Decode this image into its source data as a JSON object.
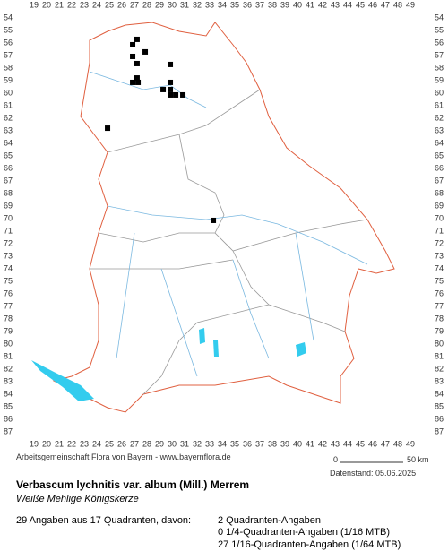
{
  "map": {
    "x_labels": [
      19,
      20,
      21,
      22,
      23,
      24,
      25,
      26,
      27,
      28,
      29,
      30,
      31,
      32,
      33,
      34,
      35,
      36,
      37,
      38,
      39,
      40,
      41,
      42,
      43,
      44,
      45,
      46,
      47,
      48,
      49
    ],
    "y_labels": [
      54,
      55,
      56,
      57,
      58,
      59,
      60,
      61,
      62,
      63,
      64,
      65,
      66,
      67,
      68,
      69,
      70,
      71,
      72,
      73,
      74,
      75,
      76,
      77,
      78,
      79,
      80,
      81,
      82,
      83,
      84,
      85,
      86,
      87
    ],
    "occurrences": [
      {
        "x": 27.21,
        "y": 55.71
      },
      {
        "x": 26.86,
        "y": 56.14
      },
      {
        "x": 27.86,
        "y": 56.71
      },
      {
        "x": 26.86,
        "y": 57.07
      },
      {
        "x": 27.21,
        "y": 57.64
      },
      {
        "x": 29.86,
        "y": 57.71
      },
      {
        "x": 27.21,
        "y": 58.79
      },
      {
        "x": 26.86,
        "y": 59.14
      },
      {
        "x": 27.29,
        "y": 59.14
      },
      {
        "x": 29.86,
        "y": 59.14
      },
      {
        "x": 29.29,
        "y": 59.71
      },
      {
        "x": 29.86,
        "y": 59.71
      },
      {
        "x": 29.86,
        "y": 60.14
      },
      {
        "x": 30.29,
        "y": 60.14
      },
      {
        "x": 30.86,
        "y": 60.14
      },
      {
        "x": 24.86,
        "y": 62.79
      },
      {
        "x": 33.29,
        "y": 70.14
      }
    ]
  },
  "footer": {
    "credit": "Arbeitsgemeinschaft Flora von Bayern - www.bayernflora.de",
    "date": "Datenstand: 05.06.2025",
    "scale_start": "0",
    "scale_end": "50 km",
    "title": "Verbascum lychnitis var. album (Mill.) Merrem",
    "subtitle": "Weiße Mehlige Königskerze",
    "summary": "29 Angaben aus 17 Quadranten, davon:",
    "stats": [
      "2 Quadranten-Angaben",
      "0 1/4-Quadranten-Angaben (1/16 MTB)",
      "27 1/16-Quadranten-Angaben (1/64 MTB)"
    ]
  }
}
